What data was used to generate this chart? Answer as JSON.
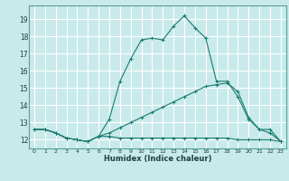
{
  "xlabel": "Humidex (Indice chaleur)",
  "ylabel": "",
  "bg_color": "#c8eaea",
  "grid_color": "#ffffff",
  "line_color": "#1a7a6e",
  "xlim": [
    -0.5,
    23.5
  ],
  "ylim": [
    11.5,
    19.8
  ],
  "xticks": [
    0,
    1,
    2,
    3,
    4,
    5,
    6,
    7,
    8,
    9,
    10,
    11,
    12,
    13,
    14,
    15,
    16,
    17,
    18,
    19,
    20,
    21,
    22,
    23
  ],
  "yticks": [
    12,
    13,
    14,
    15,
    16,
    17,
    18,
    19
  ],
  "series": [
    {
      "x": [
        0,
        1,
        2,
        3,
        4,
        5,
        6,
        7,
        8,
        9,
        10,
        11,
        12,
        13,
        14,
        15,
        16,
        17,
        18,
        19,
        20,
        21,
        22,
        23
      ],
      "y": [
        12.6,
        12.6,
        12.4,
        12.1,
        12.0,
        11.9,
        12.2,
        13.2,
        15.4,
        16.7,
        17.8,
        17.9,
        17.8,
        18.6,
        19.2,
        18.5,
        17.9,
        15.4,
        15.4,
        14.5,
        13.2,
        12.6,
        12.6,
        11.9
      ]
    },
    {
      "x": [
        0,
        1,
        2,
        3,
        4,
        5,
        6,
        7,
        8,
        9,
        10,
        11,
        12,
        13,
        14,
        15,
        16,
        17,
        18,
        19,
        20,
        21,
        22,
        23
      ],
      "y": [
        12.6,
        12.6,
        12.4,
        12.1,
        12.0,
        11.9,
        12.2,
        12.2,
        12.1,
        12.1,
        12.1,
        12.1,
        12.1,
        12.1,
        12.1,
        12.1,
        12.1,
        12.1,
        12.1,
        12.0,
        12.0,
        12.0,
        12.0,
        11.9
      ]
    },
    {
      "x": [
        0,
        1,
        2,
        3,
        4,
        5,
        6,
        7,
        8,
        9,
        10,
        11,
        12,
        13,
        14,
        15,
        16,
        17,
        18,
        19,
        20,
        21,
        22,
        23
      ],
      "y": [
        12.6,
        12.6,
        12.4,
        12.1,
        12.0,
        11.9,
        12.2,
        12.4,
        12.7,
        13.0,
        13.3,
        13.6,
        13.9,
        14.2,
        14.5,
        14.8,
        15.1,
        15.2,
        15.3,
        14.8,
        13.3,
        12.6,
        12.4,
        11.9
      ]
    }
  ]
}
